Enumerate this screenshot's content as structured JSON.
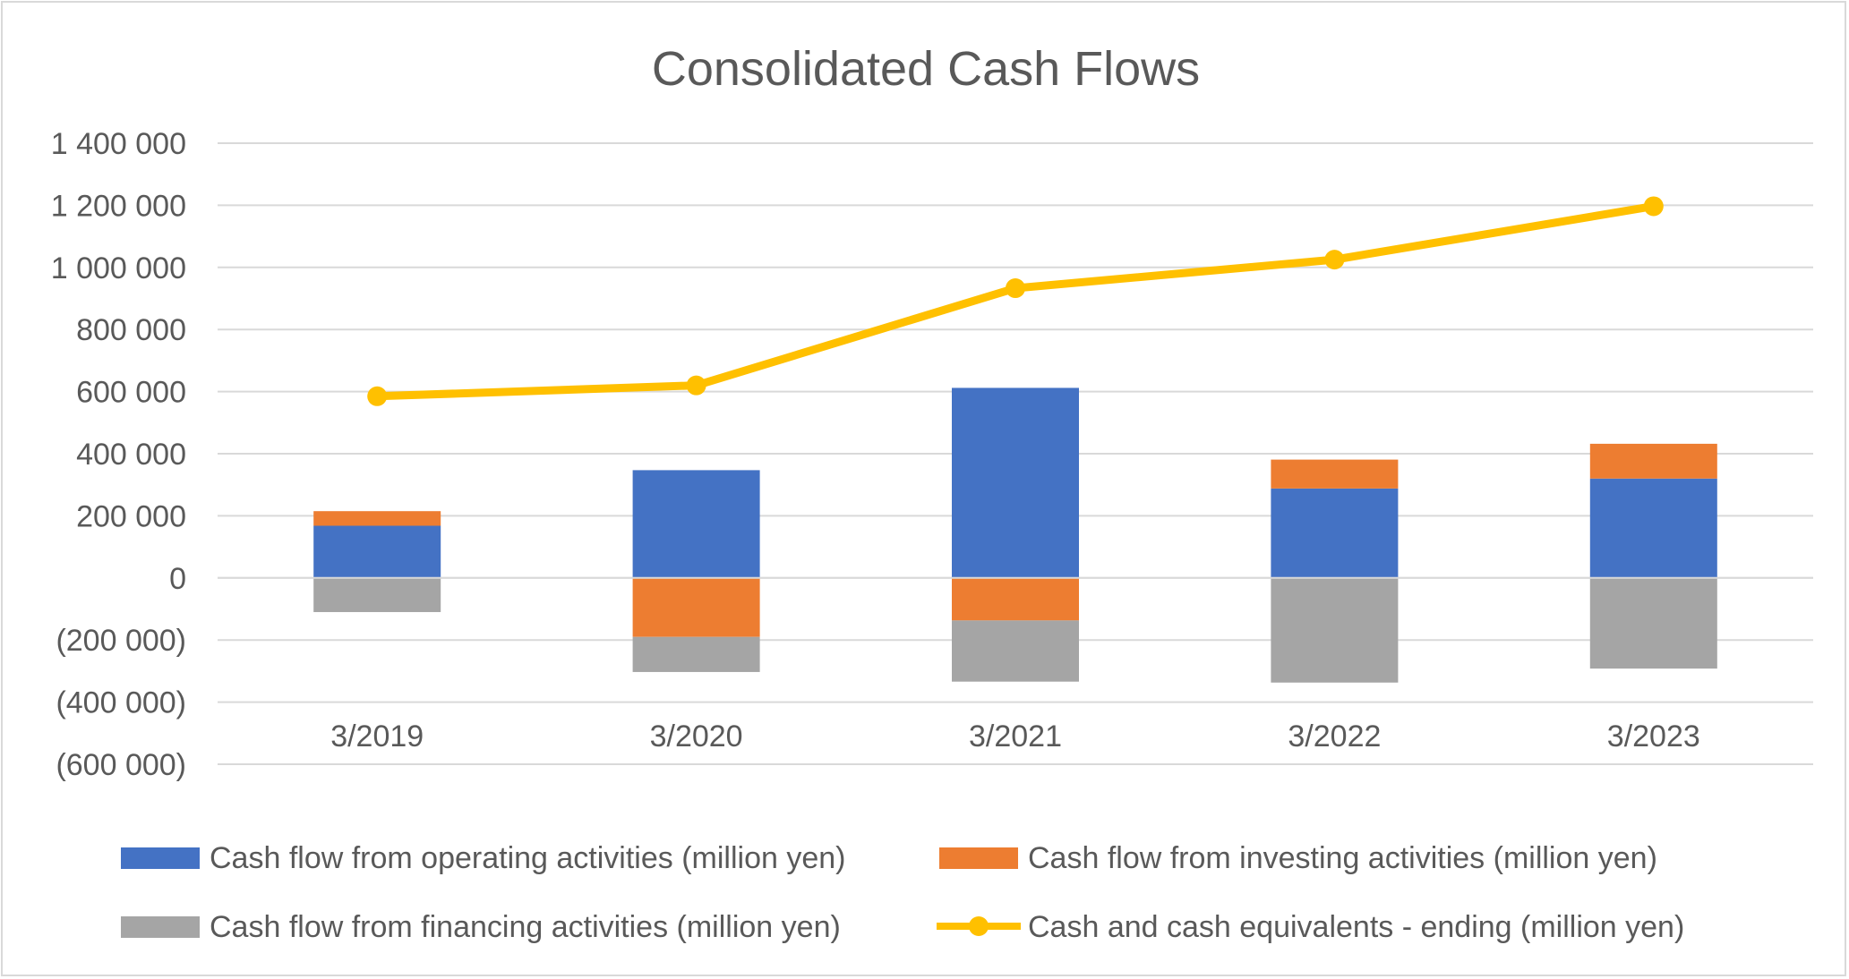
{
  "chart_data": {
    "type": "bar",
    "title": "Consolidated Cash Flows",
    "xlabel": "",
    "ylabel": "",
    "categories": [
      "3/2019",
      "3/2020",
      "3/2021",
      "3/2022",
      "3/2023"
    ],
    "ylim": [
      -600000,
      1400000
    ],
    "y_ticks": [
      1400000,
      1200000,
      1000000,
      800000,
      600000,
      400000,
      200000,
      0,
      -200000,
      -400000,
      -600000
    ],
    "y_tick_labels": [
      "1 400 000",
      "1 200 000",
      "1 000 000",
      "800 000",
      "600 000",
      "400 000",
      "200 000",
      "0",
      "(200 000)",
      "(400 000)",
      "(600 000)"
    ],
    "stacked": true,
    "grid": true,
    "legend_position": "bottom",
    "series": [
      {
        "name": "Cash flow from operating activities (million yen)",
        "kind": "bar",
        "color": "#4472c4",
        "values": [
          168000,
          347000,
          612000,
          288000,
          320000
        ]
      },
      {
        "name": "Cash flow from investing activities (million yen)",
        "kind": "bar",
        "color": "#ed7d31",
        "values": [
          47000,
          -190000,
          -137000,
          93000,
          112000
        ]
      },
      {
        "name": "Cash flow from financing activities (million yen)",
        "kind": "bar",
        "color": "#a5a5a5",
        "values": [
          -110000,
          -113000,
          -197000,
          -337000,
          -292000
        ]
      },
      {
        "name": "Cash and cash equivalents - ending (million yen)",
        "kind": "line",
        "color": "#ffc000",
        "values": [
          585000,
          620000,
          933000,
          1025000,
          1197000
        ]
      }
    ]
  }
}
